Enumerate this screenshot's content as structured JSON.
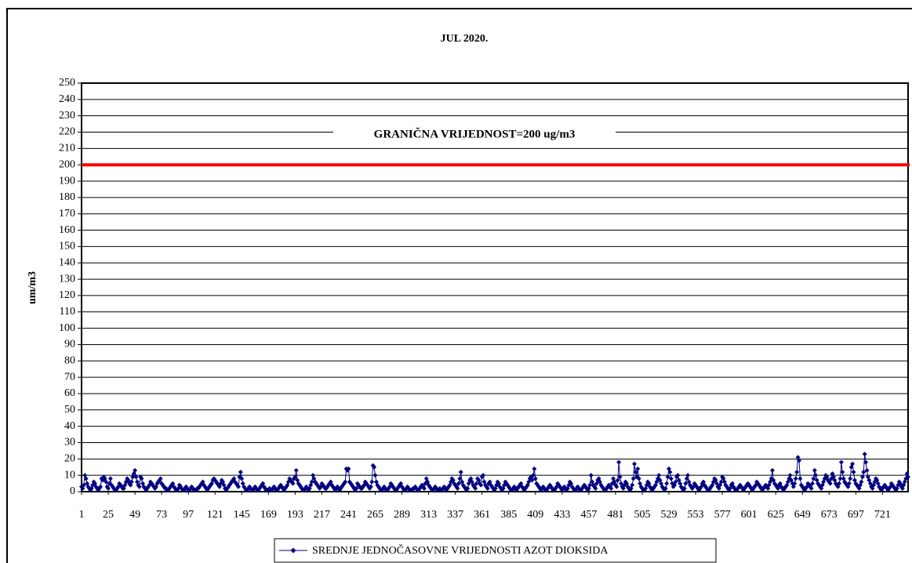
{
  "chart_data": {
    "type": "line",
    "title": "JUL 2020.",
    "y_label": "um/m3",
    "series": [
      {
        "name": "SREDNJE JEDNOČASOVNE VRIJEDNOSTI AZOT DIOKSIDA",
        "color": "#000080",
        "values": [
          3,
          2,
          4,
          10,
          8,
          5,
          3,
          2,
          1,
          2,
          4,
          6,
          5,
          3,
          2,
          1,
          2,
          3,
          8,
          7,
          9,
          8,
          6,
          3,
          2,
          5,
          8,
          4,
          3,
          2,
          1,
          1,
          2,
          3,
          5,
          4,
          3,
          2,
          2,
          4,
          6,
          8,
          7,
          5,
          4,
          6,
          9,
          11,
          13,
          9,
          6,
          4,
          3,
          9,
          8,
          5,
          3,
          2,
          1,
          2,
          3,
          4,
          6,
          5,
          4,
          3,
          2,
          3,
          5,
          6,
          7,
          8,
          5,
          4,
          3,
          2,
          2,
          1,
          1,
          2,
          3,
          4,
          5,
          3,
          2,
          1,
          1,
          2,
          4,
          3,
          2,
          1,
          1,
          2,
          3,
          2,
          1,
          1,
          2,
          3,
          2,
          1,
          1,
          1,
          2,
          2,
          3,
          4,
          5,
          6,
          4,
          3,
          2,
          1,
          2,
          3,
          4,
          5,
          7,
          8,
          7,
          6,
          5,
          4,
          3,
          5,
          7,
          6,
          4,
          2,
          1,
          2,
          3,
          4,
          5,
          6,
          7,
          8,
          6,
          5,
          4,
          3,
          9,
          12,
          8,
          5,
          3,
          2,
          1,
          1,
          2,
          3,
          2,
          1,
          1,
          2,
          3,
          2,
          1,
          1,
          2,
          3,
          4,
          5,
          3,
          2,
          1,
          1,
          1,
          2,
          1,
          1,
          2,
          3,
          2,
          1,
          1,
          2,
          3,
          4,
          3,
          2,
          1,
          2,
          3,
          4,
          6,
          8,
          7,
          6,
          5,
          8,
          9,
          13,
          7,
          5,
          4,
          3,
          2,
          1,
          1,
          2,
          3,
          2,
          1,
          2,
          4,
          6,
          10,
          8,
          6,
          5,
          4,
          3,
          2,
          3,
          5,
          4,
          3,
          2,
          2,
          3,
          4,
          5,
          6,
          4,
          3,
          2,
          1,
          2,
          3,
          2,
          1,
          2,
          3,
          4,
          5,
          6,
          14,
          13,
          14,
          6,
          5,
          4,
          3,
          2,
          1,
          2,
          5,
          4,
          3,
          2,
          2,
          3,
          4,
          6,
          5,
          4,
          3,
          2,
          3,
          6,
          16,
          15,
          10,
          6,
          4,
          3,
          2,
          1,
          1,
          2,
          3,
          2,
          1,
          1,
          2,
          3,
          5,
          4,
          3,
          2,
          1,
          1,
          2,
          3,
          4,
          5,
          3,
          2,
          1,
          1,
          2,
          3,
          2,
          1,
          1,
          1,
          2,
          2,
          3,
          2,
          1,
          1,
          2,
          3,
          4,
          3,
          2,
          5,
          8,
          6,
          4,
          3,
          2,
          1,
          1,
          2,
          3,
          2,
          1,
          1,
          2,
          1,
          1,
          2,
          3,
          2,
          1,
          2,
          3,
          4,
          6,
          8,
          7,
          5,
          4,
          3,
          2,
          5,
          8,
          12,
          6,
          4,
          3,
          2,
          1,
          2,
          5,
          7,
          8,
          6,
          4,
          3,
          2,
          5,
          8,
          7,
          5,
          4,
          9,
          10,
          6,
          4,
          3,
          2,
          5,
          6,
          4,
          3,
          2,
          1,
          2,
          4,
          6,
          5,
          3,
          2,
          1,
          2,
          4,
          6,
          5,
          4,
          3,
          2,
          1,
          1,
          2,
          3,
          2,
          1,
          2,
          3,
          4,
          5,
          3,
          2,
          1,
          2,
          3,
          4,
          6,
          8,
          9,
          7,
          10,
          14,
          8,
          5,
          4,
          3,
          2,
          1,
          2,
          3,
          2,
          1,
          1,
          2,
          3,
          4,
          3,
          2,
          1,
          1,
          2,
          3,
          5,
          4,
          3,
          2,
          1,
          2,
          3,
          2,
          1,
          2,
          4,
          6,
          5,
          3,
          2,
          1,
          1,
          2,
          3,
          2,
          1,
          1,
          2,
          3,
          4,
          3,
          2,
          1,
          2,
          4,
          10,
          6,
          4,
          3,
          2,
          5,
          7,
          8,
          6,
          4,
          3,
          2,
          1,
          1,
          2,
          3,
          4,
          3,
          2,
          5,
          8,
          6,
          4,
          3,
          7,
          18,
          9,
          5,
          3,
          2,
          4,
          6,
          5,
          3,
          2,
          1,
          2,
          4,
          8,
          17,
          12,
          9,
          14,
          8,
          5,
          3,
          2,
          1,
          1,
          2,
          4,
          6,
          5,
          3,
          2,
          1,
          2,
          3,
          4,
          6,
          8,
          10,
          7,
          5,
          3,
          2,
          1,
          2,
          5,
          9,
          14,
          12,
          8,
          5,
          3,
          4,
          6,
          9,
          10,
          7,
          5,
          3,
          2,
          1,
          2,
          5,
          8,
          10,
          6,
          4,
          3,
          2,
          3,
          5,
          4,
          3,
          2,
          1,
          2,
          3,
          5,
          6,
          4,
          3,
          2,
          1,
          1,
          2,
          3,
          4,
          6,
          8,
          7,
          5,
          3,
          2,
          4,
          6,
          9,
          8,
          6,
          4,
          3,
          2,
          1,
          2,
          4,
          5,
          3,
          2,
          1,
          1,
          2,
          3,
          4,
          3,
          2,
          1,
          2,
          3,
          4,
          5,
          4,
          3,
          2,
          1,
          2,
          3,
          4,
          6,
          5,
          4,
          3,
          2,
          1,
          2,
          3,
          4,
          3,
          2,
          4,
          6,
          8,
          13,
          7,
          5,
          4,
          3,
          2,
          4,
          5,
          3,
          2,
          1,
          2,
          3,
          4,
          6,
          8,
          10,
          7,
          5,
          3,
          5,
          8,
          12,
          21,
          19,
          8,
          4,
          3,
          2,
          1,
          2,
          3,
          5,
          4,
          3,
          2,
          5,
          8,
          13,
          10,
          7,
          5,
          4,
          3,
          2,
          4,
          6,
          8,
          10,
          9,
          7,
          6,
          5,
          8,
          11,
          9,
          7,
          5,
          4,
          3,
          5,
          8,
          18,
          12,
          8,
          6,
          5,
          4,
          3,
          5,
          8,
          15,
          17,
          12,
          7,
          5,
          4,
          3,
          2,
          4,
          6,
          9,
          12,
          23,
          18,
          13,
          9,
          7,
          5,
          3,
          2,
          4,
          6,
          8,
          7,
          5,
          3,
          2,
          1,
          2,
          3,
          4,
          3,
          2,
          1,
          2,
          3,
          5,
          4,
          3,
          2,
          1,
          2,
          4,
          6,
          5,
          3,
          2,
          4,
          6,
          8,
          11,
          9
        ]
      }
    ],
    "xlim": [
      1,
      744
    ],
    "xticks": [
      1,
      25,
      49,
      73,
      97,
      121,
      145,
      169,
      193,
      217,
      241,
      265,
      289,
      313,
      337,
      361,
      385,
      409,
      433,
      457,
      481,
      505,
      529,
      553,
      577,
      601,
      625,
      649,
      673,
      697,
      721
    ],
    "ylim": [
      0,
      250
    ],
    "yticks": [
      0,
      10,
      20,
      30,
      40,
      50,
      60,
      70,
      80,
      90,
      100,
      110,
      120,
      130,
      140,
      150,
      160,
      170,
      180,
      190,
      200,
      210,
      220,
      230,
      240,
      250
    ],
    "grid": true,
    "threshold": {
      "value": 200,
      "label": "GRANIČNA VRIJEDNOST=200 ug/m3",
      "color": "#ff0000"
    },
    "legend": "bottom"
  }
}
